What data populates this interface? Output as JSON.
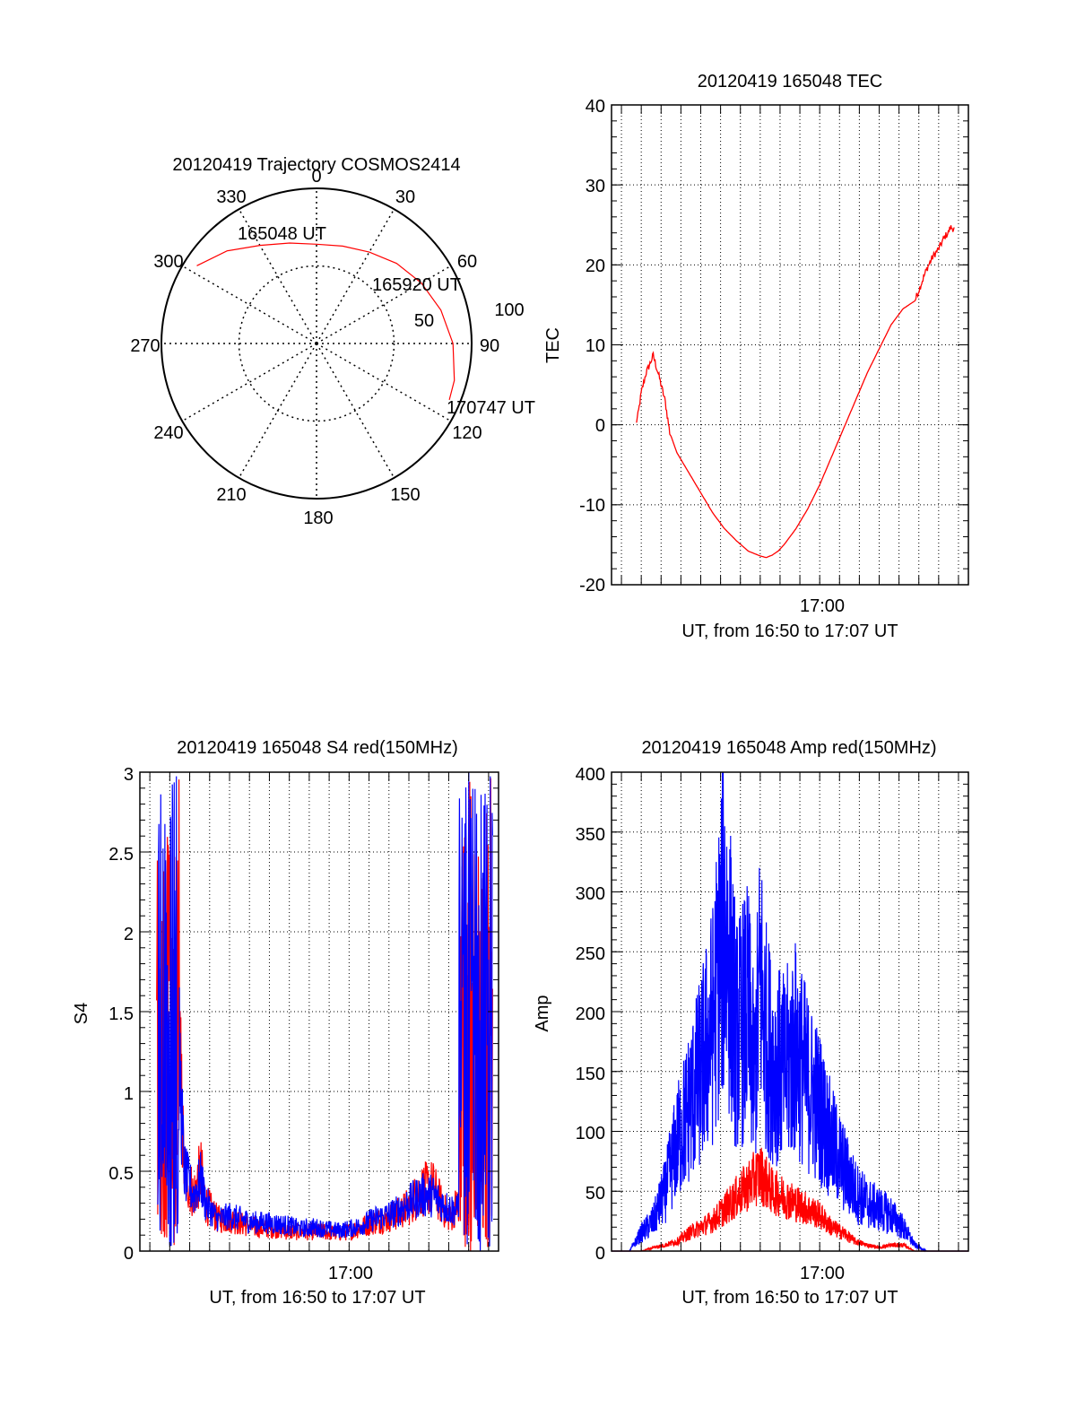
{
  "colors": {
    "red": "#ff0000",
    "blue": "#0000ff",
    "axis": "#000000",
    "grid": "#000000"
  },
  "polar": {
    "title": "20120419 Trajectory COSMOS2414",
    "azimuth_labels": [
      "0",
      "30",
      "60",
      "90",
      "120",
      "150",
      "180",
      "210",
      "240",
      "270",
      "300",
      "330"
    ],
    "radial_labels": [
      "50",
      "100"
    ],
    "time_labels": [
      "165048 UT",
      "165920 UT",
      "170747 UT"
    ],
    "chart_data": {
      "type": "polar-trajectory",
      "r_max": 100,
      "rings": [
        50,
        100
      ],
      "track": {
        "az": [
          303,
          316,
          330,
          345,
          0,
          15,
          30,
          45,
          60,
          75,
          90,
          105,
          113
        ],
        "zen": [
          92,
          83,
          73,
          67,
          64,
          65,
          68,
          73,
          78,
          83,
          88,
          92,
          93
        ]
      }
    }
  },
  "tec": {
    "title": "20120419 165048 TEC",
    "ylabel": "TEC",
    "xlabel": "UT, from 16:50 to 17:07 UT",
    "yticks": [
      "-20",
      "-10",
      "0",
      "10",
      "20",
      "30",
      "40"
    ],
    "xticks": [
      "17:00"
    ],
    "chart_data": {
      "type": "line",
      "xlim": [
        16.825,
        17.125
      ],
      "ylim": [
        -20,
        40
      ],
      "xlabel": "UT, from 16:50 to 17:07 UT",
      "ylabel": "TEC",
      "series": [
        {
          "x": [
            16.8456,
            16.847,
            16.85,
            16.854,
            16.857,
            16.86,
            16.865,
            16.87,
            16.874,
            16.88,
            16.89,
            16.9,
            16.91,
            16.92,
            16.93,
            16.94,
            16.95,
            16.955,
            16.96,
            16.965,
            16.97,
            16.98,
            16.99,
            17.0,
            17.01,
            17.02,
            17.03,
            17.04,
            17.05,
            17.06,
            17.07,
            17.08,
            17.085,
            17.09,
            17.095,
            17.1,
            17.105,
            17.108,
            17.11,
            17.113
          ],
          "y": [
            0.2,
            1,
            4,
            6.5,
            7.5,
            8.7,
            6,
            3,
            -1,
            -3.5,
            -6,
            -8.5,
            -11,
            -13,
            -14.5,
            -15.8,
            -16.4,
            -16.6,
            -16.3,
            -15.8,
            -15,
            -13,
            -10.5,
            -7.5,
            -4,
            -0.5,
            3,
            6.5,
            9.5,
            12.5,
            14.5,
            15.5,
            17.5,
            19.5,
            21,
            22,
            23.5,
            24,
            24.7,
            24.5
          ]
        }
      ]
    }
  },
  "s4": {
    "title": "20120419 165048 S4 red(150MHz)",
    "ylabel": "S4",
    "xlabel": "UT, from 16:50 to 17:07 UT",
    "yticks": [
      "0",
      "0.5",
      "1",
      "1.5",
      "2",
      "2.5",
      "3"
    ],
    "xticks": [
      "17:00"
    ],
    "chart_data": {
      "type": "line",
      "xlim": [
        16.825,
        17.125
      ],
      "ylim": [
        0,
        3
      ],
      "series": [
        {
          "color": "red",
          "x": [
            16.839,
            16.842,
            16.845,
            16.848,
            16.851,
            16.854,
            16.857,
            16.862,
            16.87,
            16.876,
            16.88,
            16.89,
            16.9,
            16.91,
            16.92,
            16.93,
            16.94,
            16.95,
            16.96,
            16.97,
            16.98,
            16.99,
            17.0,
            17.01,
            17.02,
            17.03,
            17.04,
            17.05,
            17.06,
            17.07,
            17.08,
            17.085,
            17.09,
            17.095,
            17.1,
            17.105,
            17.11,
            17.115,
            17.12
          ],
          "y": [
            0,
            1.5,
            0,
            3,
            1.2,
            0,
            1.5,
            0.5,
            0.35,
            0.5,
            0.3,
            0.2,
            0.2,
            0.17,
            0.15,
            0.14,
            0.14,
            0.12,
            0.12,
            0.12,
            0.12,
            0.11,
            0.12,
            0.15,
            0.18,
            0.2,
            0.23,
            0.28,
            0.38,
            0.4,
            0.25,
            0.2,
            0.3,
            0,
            3,
            0,
            2.5,
            0,
            1.5
          ]
        },
        {
          "color": "blue",
          "x": [
            16.84,
            16.843,
            16.846,
            16.849,
            16.852,
            16.855,
            16.858,
            16.862,
            16.87,
            16.876,
            16.88,
            16.89,
            16.9,
            16.91,
            16.92,
            16.93,
            16.94,
            16.95,
            16.96,
            16.97,
            16.98,
            16.99,
            17.0,
            17.01,
            17.02,
            17.03,
            17.04,
            17.05,
            17.06,
            17.07,
            17.08,
            17.09,
            17.095,
            17.1,
            17.105,
            17.11,
            17.115,
            17.12
          ],
          "y": [
            1,
            3,
            1.5,
            3,
            2,
            3,
            1.2,
            0.5,
            0.35,
            0.45,
            0.3,
            0.2,
            0.22,
            0.2,
            0.18,
            0.18,
            0.17,
            0.16,
            0.14,
            0.15,
            0.14,
            0.13,
            0.14,
            0.16,
            0.2,
            0.22,
            0.25,
            0.3,
            0.35,
            0.35,
            0.28,
            0.25,
            0.5,
            1.5,
            3,
            1.5,
            3,
            2.5
          ]
        }
      ]
    }
  },
  "amp": {
    "title": "20120419 165048 Amp red(150MHz)",
    "ylabel": "Amp",
    "xlabel": "UT, from 16:50 to 17:07 UT",
    "yticks": [
      "0",
      "50",
      "100",
      "150",
      "200",
      "250",
      "300",
      "350",
      "400"
    ],
    "xticks": [
      "17:00"
    ],
    "chart_data": {
      "type": "line",
      "xlim": [
        16.825,
        17.125
      ],
      "ylim": [
        0,
        400
      ],
      "series": [
        {
          "color": "blue",
          "x": [
            16.825,
            16.84,
            16.85,
            16.86,
            16.87,
            16.88,
            16.89,
            16.9,
            16.91,
            16.92,
            16.93,
            16.94,
            16.945,
            16.95,
            16.955,
            16.96,
            16.97,
            16.98,
            16.99,
            17.0,
            17.01,
            17.02,
            17.03,
            17.04,
            17.05,
            17.06,
            17.07,
            17.08,
            17.09,
            17.1,
            17.125
          ],
          "y": [
            0,
            0,
            15,
            25,
            50,
            90,
            120,
            150,
            190,
            280,
            180,
            200,
            140,
            230,
            180,
            160,
            150,
            170,
            140,
            120,
            90,
            70,
            50,
            40,
            35,
            30,
            20,
            5,
            0,
            0,
            0
          ]
        },
        {
          "color": "red",
          "x": [
            16.825,
            16.85,
            16.86,
            16.87,
            16.88,
            16.89,
            16.9,
            16.91,
            16.92,
            16.93,
            16.94,
            16.95,
            16.96,
            16.97,
            16.98,
            16.99,
            17.0,
            17.01,
            17.02,
            17.03,
            17.04,
            17.05,
            17.06,
            17.07,
            17.08,
            17.125
          ],
          "y": [
            0,
            0,
            3,
            5,
            8,
            15,
            20,
            25,
            35,
            45,
            55,
            65,
            50,
            45,
            40,
            35,
            30,
            20,
            15,
            8,
            5,
            3,
            5,
            5,
            0,
            0
          ]
        }
      ]
    }
  }
}
